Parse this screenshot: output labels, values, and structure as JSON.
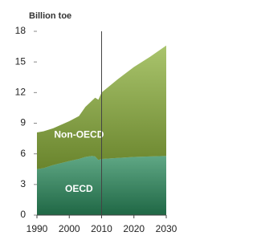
{
  "chart_data": {
    "type": "area",
    "stacked": true,
    "y_label": "Billion toe",
    "x": [
      1990,
      1992,
      1995,
      2000,
      2003,
      2005,
      2007,
      2008,
      2009,
      2010,
      2015,
      2020,
      2025,
      2030
    ],
    "series": [
      {
        "name": "OECD",
        "color": "#2a8a5c",
        "values": [
          4.5,
          4.6,
          4.9,
          5.3,
          5.5,
          5.7,
          5.8,
          5.75,
          5.4,
          5.5,
          5.6,
          5.7,
          5.75,
          5.8
        ]
      },
      {
        "name": "Non-OECD",
        "color": "#8db13c",
        "values": [
          3.6,
          3.6,
          3.6,
          3.9,
          4.2,
          4.9,
          5.4,
          5.75,
          5.9,
          6.5,
          7.7,
          8.8,
          9.75,
          10.8
        ]
      }
    ],
    "xlim": [
      1990,
      2030
    ],
    "xticks": [
      1990,
      2000,
      2010,
      2020,
      2030
    ],
    "ylim": [
      0,
      18
    ],
    "yticks": [
      0,
      3,
      6,
      9,
      12,
      15,
      18
    ],
    "divider_x": 2010,
    "grid": false
  }
}
